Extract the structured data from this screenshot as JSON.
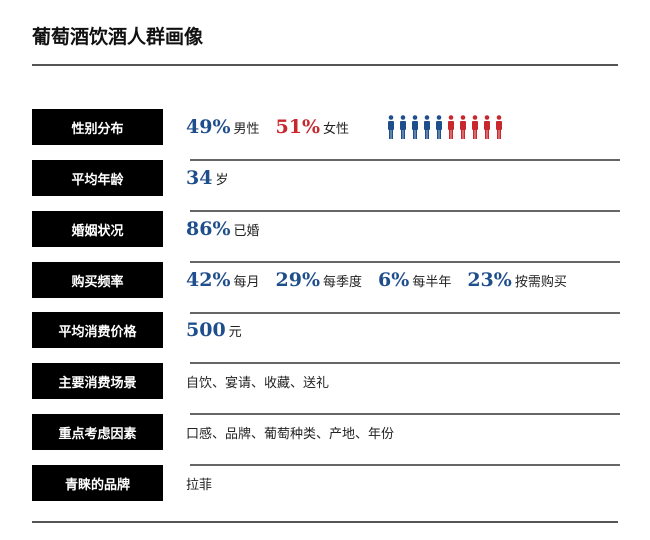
{
  "title": "葡萄酒饮酒人群画像",
  "colors": {
    "blue": "#1f4e8c",
    "red": "#c8282d"
  },
  "rows": [
    {
      "label": "性别分布",
      "male_pct": "49%",
      "male": "男性",
      "female_pct": "51%",
      "female": "女性",
      "figures": {
        "male_count": 5,
        "female_count": 5,
        "icon": "person-icon"
      }
    },
    {
      "label": "平均年龄",
      "value": "34",
      "unit": "岁"
    },
    {
      "label": "婚姻状况",
      "value": "86%",
      "unit": "已婚"
    },
    {
      "label": "购买频率",
      "items": [
        {
          "value": "42%",
          "unit": "每月"
        },
        {
          "value": "29%",
          "unit": "每季度"
        },
        {
          "value": "6%",
          "unit": "每半年"
        },
        {
          "value": "23%",
          "unit": "按需购买"
        }
      ]
    },
    {
      "label": "平均消费价格",
      "value": "500",
      "unit": "元"
    },
    {
      "label": "主要消费场景",
      "text": "自饮、宴请、收藏、送礼"
    },
    {
      "label": "重点考虑因素",
      "text": "口感、品牌、葡萄种类、产地、年份"
    },
    {
      "label": "青睐的品牌",
      "text": "拉菲"
    }
  ]
}
